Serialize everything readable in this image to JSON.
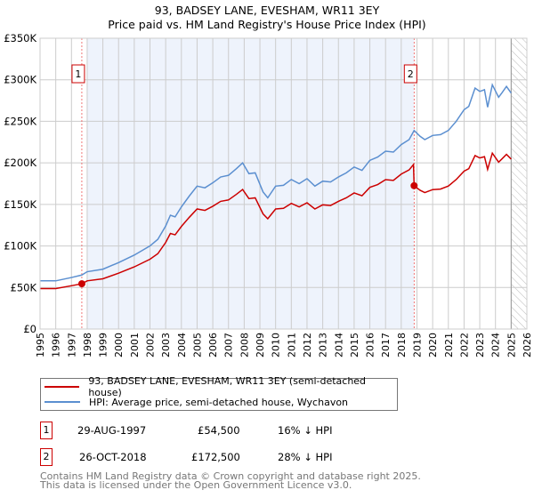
{
  "title": "93, BADSEY LANE, EVESHAM, WR11 3EY",
  "subtitle": "Price paid vs. HM Land Registry's House Price Index (HPI)",
  "chart_data": {
    "type": "line",
    "title": "93, BADSEY LANE, EVESHAM, WR11 3EY",
    "subtitle": "Price paid vs. HM Land Registry's House Price Index (HPI)",
    "xlim": [
      1995,
      2026
    ],
    "ylim": [
      0,
      350000
    ],
    "xticks": [
      "1995",
      "1996",
      "1997",
      "1998",
      "1999",
      "2000",
      "2001",
      "2002",
      "2003",
      "2004",
      "2005",
      "2006",
      "2007",
      "2008",
      "2009",
      "2010",
      "2011",
      "2012",
      "2013",
      "2014",
      "2015",
      "2016",
      "2017",
      "2018",
      "2019",
      "2020",
      "2021",
      "2022",
      "2023",
      "2024",
      "2025",
      "2026"
    ],
    "yticks": [
      {
        "v": 0,
        "l": "£0"
      },
      {
        "v": 50000,
        "l": "£50K"
      },
      {
        "v": 100000,
        "l": "£100K"
      },
      {
        "v": 150000,
        "l": "£150K"
      },
      {
        "v": 200000,
        "l": "£200K"
      },
      {
        "v": 250000,
        "l": "£250K"
      },
      {
        "v": 300000,
        "l": "£300K"
      },
      {
        "v": 350000,
        "l": "£350K"
      }
    ],
    "grid": true,
    "shaded_range": [
      1998.0,
      2018.82
    ],
    "hatched_range": [
      2025.0,
      2026
    ],
    "colors": {
      "property": "#cc0000",
      "hpi": "#5b8fd0",
      "shade": "#eef3fc"
    },
    "series": [
      {
        "name": "93, BADSEY LANE, EVESHAM, WR11 3EY (semi-detached house)",
        "color": "#cc0000",
        "x": [
          1995,
          1996,
          1997,
          1997.66,
          1998,
          1999,
          2000,
          2001,
          2002,
          2002.5,
          2003,
          2003.3,
          2003.6,
          2004,
          2004.5,
          2005,
          2005.5,
          2006,
          2006.5,
          2007,
          2007.5,
          2007.9,
          2008.3,
          2008.7,
          2009.2,
          2009.5,
          2010,
          2010.5,
          2011,
          2011.5,
          2012,
          2012.5,
          2013,
          2013.5,
          2014,
          2014.5,
          2015,
          2015.5,
          2016,
          2016.5,
          2017,
          2017.5,
          2018,
          2018.5,
          2018.78,
          2018.82,
          2019.2,
          2019.5,
          2020,
          2020.5,
          2021,
          2021.5,
          2022,
          2022.3,
          2022.7,
          2023,
          2023.3,
          2023.5,
          2023.8,
          2024.2,
          2024.4,
          2024.7,
          2025
        ],
        "y": [
          48700,
          48700,
          52100,
          54500,
          58000,
          60500,
          67200,
          74800,
          84000,
          90700,
          104200,
          115000,
          113400,
          123500,
          134400,
          144500,
          142800,
          147800,
          153700,
          155400,
          162100,
          168000,
          157000,
          157900,
          138600,
          132700,
          144500,
          145300,
          151200,
          147000,
          152000,
          144500,
          149500,
          148700,
          153700,
          157900,
          163800,
          160400,
          170500,
          173900,
          179800,
          178900,
          186500,
          191500,
          198000,
          172500,
          167000,
          164200,
          167800,
          168500,
          172100,
          180000,
          190000,
          193000,
          208800,
          205900,
          207400,
          192200,
          211700,
          200900,
          204500,
          210200,
          204500
        ]
      },
      {
        "name": "HPI: Average price, semi-detached house, Wychavon",
        "color": "#5b8fd0",
        "x": [
          1995,
          1996,
          1997,
          1997.66,
          1998,
          1999,
          2000,
          2001,
          2002,
          2002.5,
          2003,
          2003.3,
          2003.6,
          2004,
          2004.5,
          2005,
          2005.5,
          2006,
          2006.5,
          2007,
          2007.5,
          2007.9,
          2008.3,
          2008.7,
          2009.2,
          2009.5,
          2010,
          2010.5,
          2011,
          2011.5,
          2012,
          2012.5,
          2013,
          2013.5,
          2014,
          2014.5,
          2015,
          2015.5,
          2016,
          2016.5,
          2017,
          2017.5,
          2018,
          2018.5,
          2018.82,
          2019.2,
          2019.5,
          2020,
          2020.5,
          2021,
          2021.5,
          2022,
          2022.3,
          2022.7,
          2023,
          2023.3,
          2023.5,
          2023.8,
          2024.2,
          2024.4,
          2024.7,
          2025
        ],
        "y": [
          58000,
          58000,
          62000,
          65000,
          69000,
          72000,
          80000,
          89000,
          100000,
          108000,
          124000,
          137000,
          135000,
          147000,
          160000,
          172000,
          170000,
          176000,
          183000,
          185000,
          193000,
          200000,
          187000,
          188000,
          165000,
          158000,
          172000,
          173000,
          180000,
          175000,
          181000,
          172000,
          178000,
          177000,
          183000,
          188000,
          195000,
          191000,
          203000,
          207000,
          214000,
          213000,
          222000,
          228000,
          239000,
          232000,
          228000,
          233000,
          234000,
          239000,
          250000,
          264000,
          268000,
          290000,
          286000,
          288000,
          267000,
          294000,
          279000,
          284000,
          292000,
          284000
        ]
      }
    ],
    "annotations": [
      {
        "label": "1",
        "x": 1997.66,
        "y": 54500
      },
      {
        "label": "2",
        "x": 2018.82,
        "y": 172500
      }
    ]
  },
  "legend": {
    "property": "93, BADSEY LANE, EVESHAM, WR11 3EY (semi-detached house)",
    "hpi": "HPI: Average price, semi-detached house, Wychavon"
  },
  "sales": [
    {
      "num": "1",
      "date": "29-AUG-1997",
      "price": "£54,500",
      "diff": "16% ↓ HPI"
    },
    {
      "num": "2",
      "date": "26-OCT-2018",
      "price": "£172,500",
      "diff": "28% ↓ HPI"
    }
  ],
  "footer": {
    "line1": "Contains HM Land Registry data © Crown copyright and database right 2025.",
    "line2": "This data is licensed under the Open Government Licence v3.0."
  }
}
